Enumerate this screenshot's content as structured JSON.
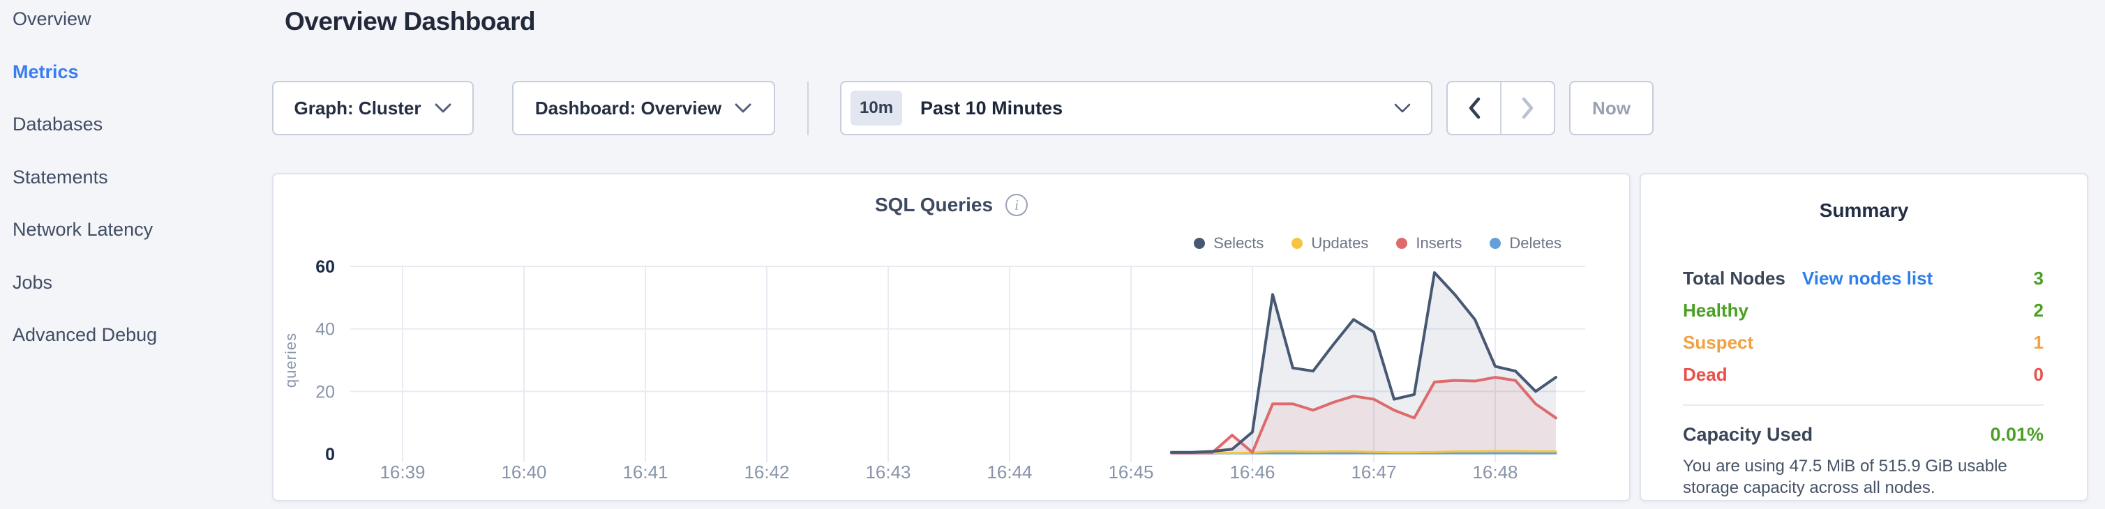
{
  "sidebar": {
    "items": [
      {
        "label": "Overview",
        "active": false
      },
      {
        "label": "Metrics",
        "active": true
      },
      {
        "label": "Databases",
        "active": false
      },
      {
        "label": "Statements",
        "active": false
      },
      {
        "label": "Network Latency",
        "active": false
      },
      {
        "label": "Jobs",
        "active": false
      },
      {
        "label": "Advanced Debug",
        "active": false
      }
    ]
  },
  "header": {
    "title": "Overview Dashboard"
  },
  "toolbar": {
    "graph_dropdown_label": "Graph: Cluster",
    "dashboard_dropdown_label": "Dashboard: Overview",
    "time_picker": {
      "badge": "10m",
      "label": "Past 10 Minutes"
    },
    "now_button_label": "Now"
  },
  "chart_data": {
    "type": "area",
    "title": "SQL Queries",
    "ylabel": "queries",
    "xlabel": "",
    "x_tick_labels": [
      "16:39",
      "16:40",
      "16:41",
      "16:42",
      "16:43",
      "16:44",
      "16:45",
      "16:46",
      "16:47",
      "16:48"
    ],
    "y_ticks": [
      0,
      20,
      40,
      60
    ],
    "ylim": [
      0,
      60
    ],
    "grid": true,
    "legend_position": "top-right",
    "x_offsets_min": [
      6.333,
      6.5,
      6.667,
      6.833,
      7.0,
      7.167,
      7.333,
      7.5,
      7.667,
      7.833,
      8.0,
      8.167,
      8.333,
      8.5,
      8.667,
      8.833,
      9.0,
      9.167,
      9.333,
      9.5
    ],
    "series": [
      {
        "name": "Selects",
        "color": "#475872",
        "fill": "rgba(71,88,114,0.10)",
        "values": [
          0.5,
          0.5,
          0.8,
          1.5,
          7,
          51,
          27.5,
          26.5,
          35,
          43,
          39,
          17.5,
          19,
          58,
          51,
          43,
          28,
          26.5,
          20,
          24.5
        ]
      },
      {
        "name": "Updates",
        "color": "#f6c440",
        "fill": "none",
        "values": [
          0.3,
          0.3,
          0.3,
          0.3,
          0.4,
          0.8,
          0.8,
          0.7,
          0.8,
          0.8,
          0.6,
          0.5,
          0.5,
          0.6,
          0.8,
          0.8,
          0.9,
          0.9,
          0.8,
          0.8
        ]
      },
      {
        "name": "Inserts",
        "color": "#dd6a6d",
        "fill": "rgba(221,106,109,0.10)",
        "values": [
          0.3,
          0.3,
          0.3,
          6,
          0.5,
          16,
          16,
          14,
          16.5,
          18.5,
          17.5,
          14,
          11.5,
          23,
          23.5,
          23.3,
          24.5,
          23.5,
          16,
          11.5
        ]
      },
      {
        "name": "Deletes",
        "color": "#61a1d8",
        "fill": "none",
        "values": [
          0.2,
          0.2,
          0.2,
          0.2,
          0.2,
          0.2,
          0.2,
          0.2,
          0.2,
          0.2,
          0.2,
          0.2,
          0.2,
          0.2,
          0.2,
          0.2,
          0.2,
          0.2,
          0.2,
          0.2
        ]
      }
    ]
  },
  "summary": {
    "title": "Summary",
    "rows": [
      {
        "label": "Total Nodes",
        "link": "View nodes list",
        "value": "3",
        "label_color": "#3a4557",
        "value_color": "#4aa024"
      },
      {
        "label": "Healthy",
        "link": "",
        "value": "2",
        "label_color": "#4aa024",
        "value_color": "#4aa024"
      },
      {
        "label": "Suspect",
        "link": "",
        "value": "1",
        "label_color": "#f0a242",
        "value_color": "#f0a242"
      },
      {
        "label": "Dead",
        "link": "",
        "value": "0",
        "label_color": "#e9504a",
        "value_color": "#e9504a"
      }
    ],
    "capacity": {
      "label": "Capacity Used",
      "value": "0.01%",
      "value_color": "#4aa024",
      "description": "You are using 47.5 MiB of 515.9 GiB usable storage capacity across all nodes."
    }
  },
  "colors": {
    "accent_blue": "#3b7df0",
    "link_blue": "#2e7fe8",
    "green": "#4aa024",
    "orange": "#f0a242",
    "red": "#e9504a",
    "axis_text": "#8894a9",
    "axis_text_strong": "#1c2c49",
    "gridline": "#e8ebf2"
  }
}
